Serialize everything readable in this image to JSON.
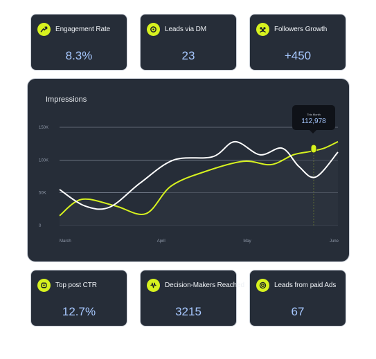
{
  "cards_top": [
    {
      "label": "Engagement Rate",
      "value": "8.3%",
      "icon": "growth-icon"
    },
    {
      "label": "Leads via DM",
      "value": "23",
      "icon": "chat-icon"
    },
    {
      "label": "Followers Growth",
      "value": "+450",
      "icon": "people-icon"
    }
  ],
  "cards_bottom": [
    {
      "label": "Top post CTR",
      "value": "12.7%",
      "icon": "click-icon"
    },
    {
      "label": "Decision-Makers Reached",
      "value": "3215",
      "icon": "signal-icon"
    },
    {
      "label": "Leads from paid Ads",
      "value": "67",
      "icon": "target-icon"
    }
  ],
  "colors": {
    "accent": "#d7f21f",
    "card_bg": "#262d38",
    "value": "#a7c8ff",
    "line_white": "#ffffff"
  },
  "chart_data": {
    "type": "line",
    "title": "Impressions",
    "yticks": [
      "150K",
      "100K",
      "50K",
      "0"
    ],
    "ylim": [
      0,
      150000
    ],
    "categories": [
      "March",
      "April",
      "May",
      "June"
    ],
    "grid": true,
    "tooltip": {
      "label": "This Month",
      "value": "112,978"
    },
    "series": [
      {
        "color": "#d7f21f",
        "values": [
          [
            0,
            15000
          ],
          [
            0.08,
            40000
          ],
          [
            0.2,
            30000
          ],
          [
            0.31,
            18000
          ],
          [
            0.4,
            60000
          ],
          [
            0.52,
            82000
          ],
          [
            0.66,
            98000
          ],
          [
            0.76,
            93000
          ],
          [
            0.84,
            108000
          ],
          [
            0.9,
            112978
          ],
          [
            0.95,
            118000
          ],
          [
            1,
            128000
          ]
        ]
      },
      {
        "color": "#ffffff",
        "values": [
          [
            0,
            55000
          ],
          [
            0.09,
            30000
          ],
          [
            0.18,
            28000
          ],
          [
            0.29,
            65000
          ],
          [
            0.41,
            100000
          ],
          [
            0.55,
            105000
          ],
          [
            0.63,
            128000
          ],
          [
            0.72,
            108000
          ],
          [
            0.8,
            118000
          ],
          [
            0.86,
            90000
          ],
          [
            0.92,
            74000
          ],
          [
            1,
            112000
          ]
        ]
      }
    ]
  }
}
